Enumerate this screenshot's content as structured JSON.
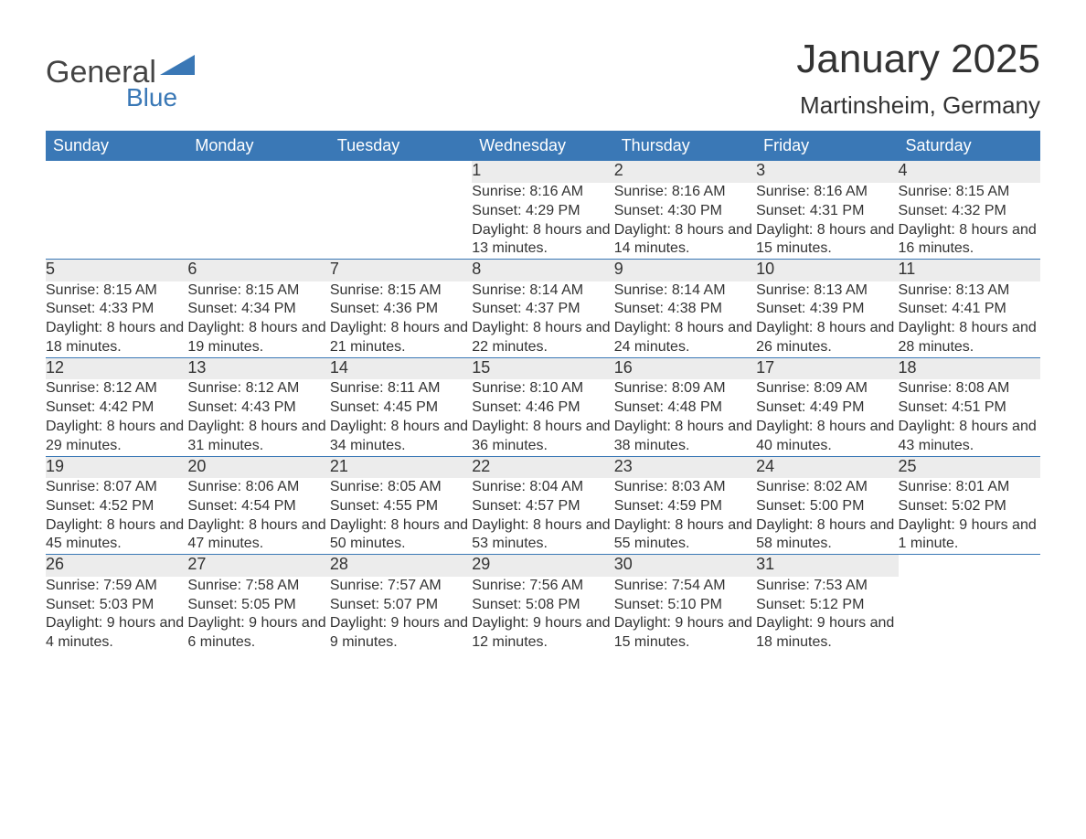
{
  "logo": {
    "text_general": "General",
    "text_blue": "Blue"
  },
  "title": "January 2025",
  "location": "Martinsheim, Germany",
  "header_bg": "#3a78b6",
  "daynum_bg": "#ececec",
  "separator_color": "#3a78b6",
  "text_color": "#333333",
  "font_family": "Arial",
  "title_fontsize": 44,
  "location_fontsize": 26,
  "header_fontsize": 18,
  "cell_fontsize": 16,
  "columns": [
    "Sunday",
    "Monday",
    "Tuesday",
    "Wednesday",
    "Thursday",
    "Friday",
    "Saturday"
  ],
  "weeks": [
    [
      null,
      null,
      null,
      {
        "day": "1",
        "sunrise": "8:16 AM",
        "sunset": "4:29 PM",
        "daylight": "8 hours and 13 minutes."
      },
      {
        "day": "2",
        "sunrise": "8:16 AM",
        "sunset": "4:30 PM",
        "daylight": "8 hours and 14 minutes."
      },
      {
        "day": "3",
        "sunrise": "8:16 AM",
        "sunset": "4:31 PM",
        "daylight": "8 hours and 15 minutes."
      },
      {
        "day": "4",
        "sunrise": "8:15 AM",
        "sunset": "4:32 PM",
        "daylight": "8 hours and 16 minutes."
      }
    ],
    [
      {
        "day": "5",
        "sunrise": "8:15 AM",
        "sunset": "4:33 PM",
        "daylight": "8 hours and 18 minutes."
      },
      {
        "day": "6",
        "sunrise": "8:15 AM",
        "sunset": "4:34 PM",
        "daylight": "8 hours and 19 minutes."
      },
      {
        "day": "7",
        "sunrise": "8:15 AM",
        "sunset": "4:36 PM",
        "daylight": "8 hours and 21 minutes."
      },
      {
        "day": "8",
        "sunrise": "8:14 AM",
        "sunset": "4:37 PM",
        "daylight": "8 hours and 22 minutes."
      },
      {
        "day": "9",
        "sunrise": "8:14 AM",
        "sunset": "4:38 PM",
        "daylight": "8 hours and 24 minutes."
      },
      {
        "day": "10",
        "sunrise": "8:13 AM",
        "sunset": "4:39 PM",
        "daylight": "8 hours and 26 minutes."
      },
      {
        "day": "11",
        "sunrise": "8:13 AM",
        "sunset": "4:41 PM",
        "daylight": "8 hours and 28 minutes."
      }
    ],
    [
      {
        "day": "12",
        "sunrise": "8:12 AM",
        "sunset": "4:42 PM",
        "daylight": "8 hours and 29 minutes."
      },
      {
        "day": "13",
        "sunrise": "8:12 AM",
        "sunset": "4:43 PM",
        "daylight": "8 hours and 31 minutes."
      },
      {
        "day": "14",
        "sunrise": "8:11 AM",
        "sunset": "4:45 PM",
        "daylight": "8 hours and 34 minutes."
      },
      {
        "day": "15",
        "sunrise": "8:10 AM",
        "sunset": "4:46 PM",
        "daylight": "8 hours and 36 minutes."
      },
      {
        "day": "16",
        "sunrise": "8:09 AM",
        "sunset": "4:48 PM",
        "daylight": "8 hours and 38 minutes."
      },
      {
        "day": "17",
        "sunrise": "8:09 AM",
        "sunset": "4:49 PM",
        "daylight": "8 hours and 40 minutes."
      },
      {
        "day": "18",
        "sunrise": "8:08 AM",
        "sunset": "4:51 PM",
        "daylight": "8 hours and 43 minutes."
      }
    ],
    [
      {
        "day": "19",
        "sunrise": "8:07 AM",
        "sunset": "4:52 PM",
        "daylight": "8 hours and 45 minutes."
      },
      {
        "day": "20",
        "sunrise": "8:06 AM",
        "sunset": "4:54 PM",
        "daylight": "8 hours and 47 minutes."
      },
      {
        "day": "21",
        "sunrise": "8:05 AM",
        "sunset": "4:55 PM",
        "daylight": "8 hours and 50 minutes."
      },
      {
        "day": "22",
        "sunrise": "8:04 AM",
        "sunset": "4:57 PM",
        "daylight": "8 hours and 53 minutes."
      },
      {
        "day": "23",
        "sunrise": "8:03 AM",
        "sunset": "4:59 PM",
        "daylight": "8 hours and 55 minutes."
      },
      {
        "day": "24",
        "sunrise": "8:02 AM",
        "sunset": "5:00 PM",
        "daylight": "8 hours and 58 minutes."
      },
      {
        "day": "25",
        "sunrise": "8:01 AM",
        "sunset": "5:02 PM",
        "daylight": "9 hours and 1 minute."
      }
    ],
    [
      {
        "day": "26",
        "sunrise": "7:59 AM",
        "sunset": "5:03 PM",
        "daylight": "9 hours and 4 minutes."
      },
      {
        "day": "27",
        "sunrise": "7:58 AM",
        "sunset": "5:05 PM",
        "daylight": "9 hours and 6 minutes."
      },
      {
        "day": "28",
        "sunrise": "7:57 AM",
        "sunset": "5:07 PM",
        "daylight": "9 hours and 9 minutes."
      },
      {
        "day": "29",
        "sunrise": "7:56 AM",
        "sunset": "5:08 PM",
        "daylight": "9 hours and 12 minutes."
      },
      {
        "day": "30",
        "sunrise": "7:54 AM",
        "sunset": "5:10 PM",
        "daylight": "9 hours and 15 minutes."
      },
      {
        "day": "31",
        "sunrise": "7:53 AM",
        "sunset": "5:12 PM",
        "daylight": "9 hours and 18 minutes."
      },
      null
    ]
  ],
  "labels": {
    "sunrise": "Sunrise:",
    "sunset": "Sunset:",
    "daylight": "Daylight:"
  }
}
